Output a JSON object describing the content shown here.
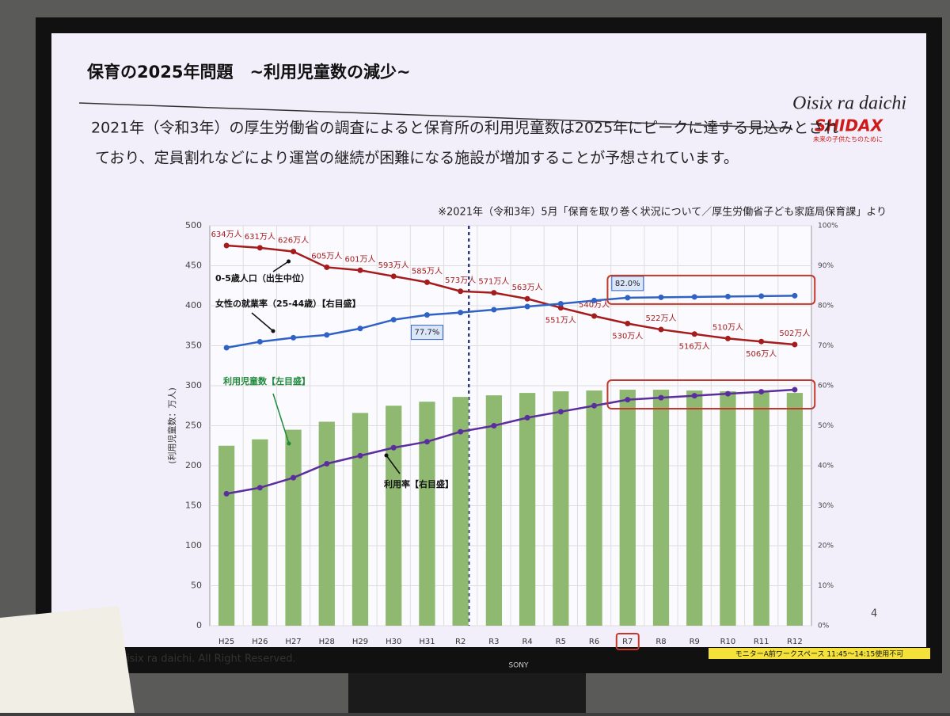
{
  "slide": {
    "title": "保育の2025年問題　~利用児童数の減少~",
    "body_lines": [
      "2021年（令和3年）の厚生労働省の調査によると保育所の利用児童数は2025年にピークに達する見込みとされ",
      "ており、定員割れなどにより運営の継続が困難になる施設が増加することが予想されています。"
    ],
    "source": "※2021年（令和3年）5月「保育を取り巻く状況について／厚生労働省子ども家庭局保育課」より",
    "logo": "Oisix ra daichi",
    "brand": "SHIDAX",
    "tagline": "未来の子供たちのために",
    "page_number": "4",
    "footer": "isix ra daichi. All Right Reserved.",
    "monitor_brand": "SONY",
    "monitor_note": "モニターA前ワークスペース 11:45〜14:15使用不可"
  },
  "chart_data": {
    "type": "combo",
    "y_label": "(利用児童数：万人)",
    "categories": [
      "H25",
      "H26",
      "H27",
      "H28",
      "H29",
      "H30",
      "H31",
      "R2",
      "R3",
      "R4",
      "R5",
      "R6",
      "R7",
      "R8",
      "R9",
      "R10",
      "R11",
      "R12"
    ],
    "ylim": [
      0,
      500
    ],
    "yticks": [
      0,
      50,
      100,
      150,
      200,
      250,
      300,
      350,
      400,
      450,
      500
    ],
    "y2lim": [
      0,
      100
    ],
    "y2ticks": [
      {
        "value": 0,
        "label": "0%"
      },
      {
        "value": 10,
        "label": "10%"
      },
      {
        "value": 20,
        "label": "20%"
      },
      {
        "value": 30,
        "label": "30%"
      },
      {
        "value": 40,
        "label": "40%"
      },
      {
        "value": 50,
        "label": "50%"
      },
      {
        "value": 60,
        "label": "60%"
      },
      {
        "value": 70,
        "label": "70%"
      },
      {
        "value": 80,
        "label": "80%"
      },
      {
        "value": 90,
        "label": "90%"
      },
      {
        "value": 100,
        "label": "100%"
      }
    ],
    "grid": true,
    "series": [
      {
        "name": "利用児童数【左目盛】",
        "type": "bar",
        "color": "#8fb870",
        "values": [
          225,
          233,
          245,
          255,
          266,
          275,
          280,
          286,
          288,
          291,
          293,
          294,
          295,
          295,
          294,
          293,
          292,
          291
        ]
      },
      {
        "name": "0-5歳人口（出生中位）",
        "type": "line",
        "axis": "own",
        "color": "#a51c1c",
        "values": [
          634,
          631,
          626,
          605,
          601,
          593,
          585,
          573,
          571,
          563,
          551,
          540,
          530,
          522,
          516,
          510,
          506,
          502
        ],
        "value_labels": [
          "634万人",
          "631万人",
          "626万人",
          "605万人",
          "601万人",
          "593万人",
          "585万人",
          "573万人",
          "571万人",
          "563万人",
          "551万人",
          "540万人",
          "530万人",
          "522万人",
          "516万人",
          "510万人",
          "506万人",
          "502万人"
        ]
      },
      {
        "name": "女性の就業率（25-44歳）【右目盛】",
        "type": "line",
        "axis": "y2",
        "color": "#2f62c4",
        "values": [
          69.5,
          71.0,
          72.0,
          72.7,
          74.3,
          76.5,
          77.7,
          78.3,
          79.0,
          79.8,
          80.5,
          81.3,
          82.0,
          82.1,
          82.2,
          82.3,
          82.4,
          82.5
        ],
        "value_labels": [
          null,
          null,
          null,
          null,
          null,
          null,
          "77.7%",
          null,
          null,
          null,
          null,
          null,
          "82.0%",
          null,
          null,
          null,
          null,
          null
        ]
      },
      {
        "name": "利用率【右目盛】",
        "type": "line",
        "axis": "y2",
        "color": "#5b2e9e",
        "values": [
          33.0,
          34.5,
          37.0,
          40.5,
          42.5,
          44.5,
          46.0,
          48.5,
          50.0,
          52.0,
          53.5,
          55.0,
          56.5,
          57.0,
          57.5,
          58.0,
          58.5,
          59.0
        ]
      }
    ]
  }
}
